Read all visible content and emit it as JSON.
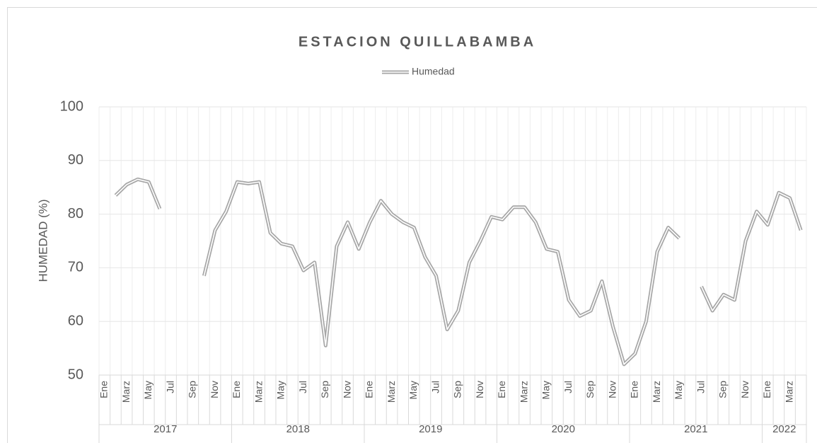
{
  "chart_data": {
    "type": "line",
    "title": "ESTACION QUILLABAMBA",
    "y_label": "HUMEDAD (%)",
    "categories": [
      "Ene",
      null,
      "Marz",
      null,
      "May",
      null,
      "Jul",
      null,
      "Sep",
      null,
      "Nov",
      null,
      "Ene",
      null,
      "Marz",
      null,
      "May",
      null,
      "Jul",
      null,
      "Sep",
      null,
      "Nov",
      null,
      "Ene",
      null,
      "Marz",
      null,
      "May",
      null,
      "Jul",
      null,
      "Sep",
      null,
      "Nov",
      null,
      "Ene",
      null,
      "Marz",
      null,
      "May",
      null,
      "Jul",
      null,
      "Sep",
      null,
      "Nov",
      null,
      "Ene",
      null,
      "Marz",
      null,
      "May",
      null,
      "Jul",
      null,
      "Sep",
      null,
      "Nov",
      null,
      "Ene",
      null,
      "Marz",
      null
    ],
    "years": [
      "2017",
      "2018",
      "2019",
      "2020",
      "2021",
      "2022"
    ],
    "series": [
      {
        "name": "Humedad",
        "color": "#a6a6a6",
        "values": [
          null,
          83.5,
          85.5,
          86.5,
          86,
          81,
          null,
          null,
          null,
          68.5,
          77,
          80.5,
          86,
          85.7,
          86,
          76.5,
          74.5,
          74,
          69.5,
          71,
          55.5,
          74,
          78.5,
          73.5,
          78.5,
          82.5,
          80,
          78.5,
          77.5,
          72,
          68.5,
          58.5,
          62,
          71,
          75,
          79.5,
          79,
          81.3,
          81.3,
          78.5,
          73.5,
          73,
          64,
          61,
          62,
          67.5,
          59,
          52,
          54,
          60,
          73,
          77.5,
          75.5,
          null,
          66.5,
          62,
          65,
          64,
          75,
          80.5,
          78,
          84,
          83,
          77
        ]
      }
    ],
    "ylim": [
      50,
      100
    ],
    "yticks": [
      50,
      60,
      70,
      80,
      90,
      100
    ],
    "grid": true,
    "legend": "top"
  }
}
